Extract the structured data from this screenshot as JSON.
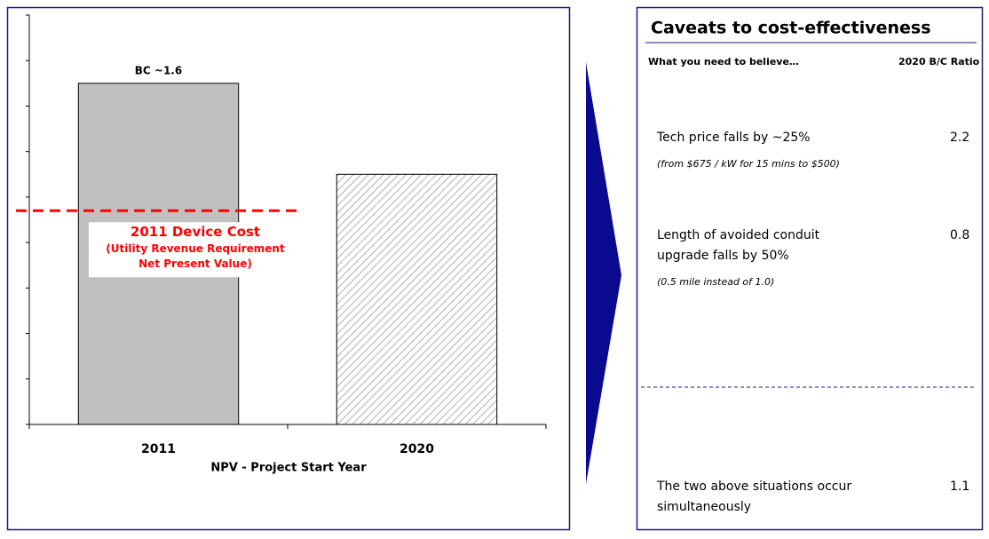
{
  "chart_data": {
    "type": "bar",
    "categories": [
      "2011",
      "2020"
    ],
    "values": [
      7.5,
      5.5
    ],
    "fills": [
      "solid",
      "hatched"
    ],
    "color": "#c0c0c0",
    "bar_labels": [
      "BC ~1.6",
      null
    ],
    "xlabel": "NPV - Project Start Year",
    "ylim": [
      0,
      9
    ],
    "yticks": [
      0,
      1,
      2,
      3,
      4,
      5,
      6,
      7,
      8,
      9
    ],
    "reference_line": {
      "value": 4.7,
      "color": "#ff0000",
      "title": "2011 Device Cost",
      "subtitle": [
        "(Utility Revenue Requirement",
        "Net Present Value)"
      ]
    }
  },
  "caveats": {
    "title": "Caveats to cost-effectiveness",
    "headers": [
      "What you need to believe…",
      "2020 B/C Ratio"
    ],
    "rows": [
      {
        "text": [
          "Tech price falls by ~25%"
        ],
        "note": "(from $675 / kW for 15 mins to $500)",
        "ratio": 2.2
      },
      {
        "text": [
          "Length of avoided conduit",
          "upgrade falls by 50%"
        ],
        "note": "(0.5 mile instead of 1.0)",
        "ratio": 0.8
      },
      {
        "text": [
          "The two above situations occur",
          "simultaneously"
        ],
        "note": null,
        "ratio": 1.1
      }
    ]
  }
}
